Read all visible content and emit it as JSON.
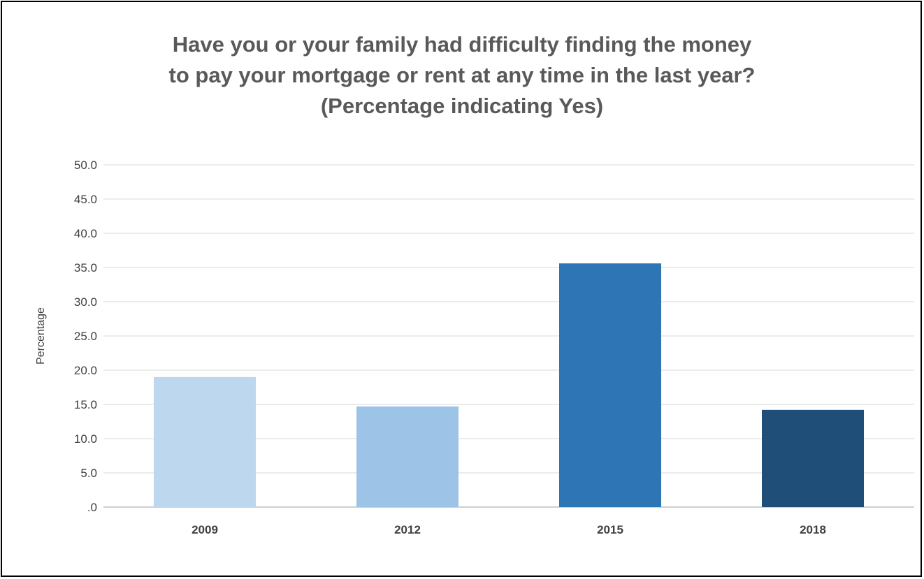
{
  "chart_data": {
    "type": "bar",
    "title_lines": [
      "Have you or your family had difficulty finding the money",
      "to pay your mortgage or rent at any time in the last year?",
      "(Percentage indicating Yes)"
    ],
    "xlabel": "",
    "ylabel": "Percentage",
    "categories": [
      "2009",
      "2012",
      "2015",
      "2018"
    ],
    "values": [
      19.0,
      14.7,
      35.6,
      14.2
    ],
    "bar_colors": [
      "#BDD7EE",
      "#9DC3E6",
      "#2E75B6",
      "#1F4E79"
    ],
    "ylim": [
      0,
      50
    ],
    "yticks": [
      0,
      5,
      10,
      15,
      20,
      25,
      30,
      35,
      40,
      45,
      50
    ],
    "ytick_labels": [
      ".0",
      "5.0",
      "10.0",
      "15.0",
      "20.0",
      "25.0",
      "30.0",
      "35.0",
      "40.0",
      "45.0",
      "50.0"
    ],
    "grid": true,
    "legend": "none"
  }
}
